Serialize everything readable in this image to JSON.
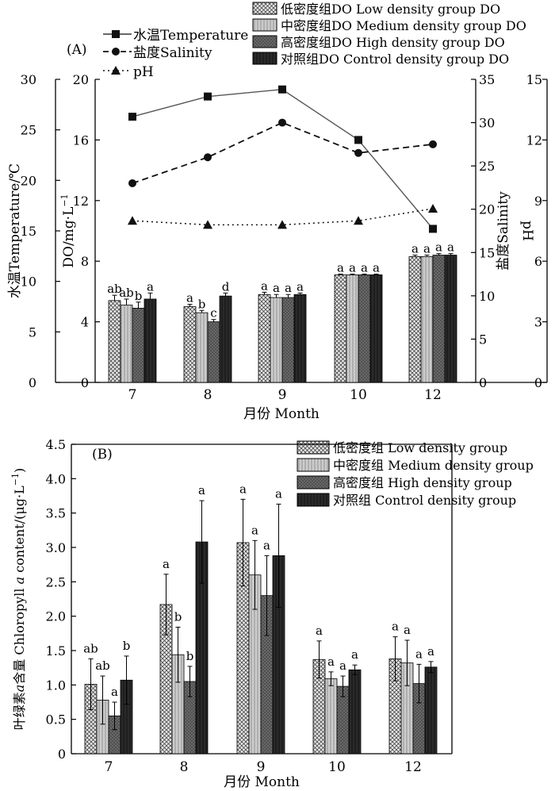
{
  "chart_data": [
    {
      "type": "bar+line",
      "panel_label": "(A)",
      "categories": [
        "7",
        "8",
        "9",
        "10",
        "12"
      ],
      "xlabel": "月份 Month",
      "left_axis_1": {
        "label": "水温Temperature/℃",
        "range": [
          0,
          30
        ],
        "ticks": [
          "0",
          "5",
          "10",
          "15",
          "20",
          "25",
          "30"
        ]
      },
      "left_axis_2": {
        "label_main": "DO/mg·L",
        "label_sup": "−1",
        "range": [
          0,
          20
        ],
        "ticks": [
          "0",
          "4",
          "8",
          "12",
          "16",
          "20"
        ]
      },
      "right_axis_1": {
        "label": "盐度Salinity",
        "range": [
          0,
          35
        ],
        "ticks": [
          "0",
          "5",
          "10",
          "15",
          "20",
          "25",
          "30",
          "35"
        ]
      },
      "right_axis_2": {
        "label": "pH",
        "range": [
          0,
          15
        ],
        "ticks": [
          "0",
          "3",
          "6",
          "9",
          "12",
          "15"
        ]
      },
      "bar_series": [
        {
          "name": "低密度组DO Low density group DO",
          "pattern": "crosshatch",
          "values": [
            5.4,
            5.0,
            5.8,
            7.1,
            8.3
          ],
          "errors": [
            0.35,
            0.15,
            0.15,
            0.05,
            0.1
          ],
          "letters": [
            "ab",
            "a",
            "a",
            "a",
            "a"
          ]
        },
        {
          "name": "中密度组DO Medium density group DO",
          "pattern": "vstripe",
          "values": [
            5.1,
            4.6,
            5.6,
            7.1,
            8.3
          ],
          "errors": [
            0.4,
            0.15,
            0.2,
            0.05,
            0.1
          ],
          "letters": [
            "ab",
            "b",
            "a",
            "a",
            "a"
          ]
        },
        {
          "name": "高密度组DO High density group DO",
          "pattern": "dark",
          "values": [
            4.9,
            4.0,
            5.6,
            7.1,
            8.4
          ],
          "errors": [
            0.4,
            0.15,
            0.2,
            0.05,
            0.1
          ],
          "letters": [
            "b",
            "c",
            "a",
            "a",
            "a"
          ]
        },
        {
          "name": "对照组DO Control density group DO",
          "pattern": "black",
          "values": [
            5.5,
            5.7,
            5.8,
            7.1,
            8.4
          ],
          "errors": [
            0.4,
            0.2,
            0.1,
            0.05,
            0.1
          ],
          "letters": [
            "a",
            "d",
            "a",
            "a",
            "a"
          ]
        }
      ],
      "line_series": [
        {
          "name": "水温Temperature",
          "axis": "temperature",
          "marker": "square",
          "values": [
            26.3,
            28.3,
            29.0,
            24.0,
            15.2
          ]
        },
        {
          "name": "盐度Salinity",
          "axis": "salinity",
          "marker": "circle",
          "values": [
            23.0,
            26.0,
            30.0,
            26.5,
            27.5
          ]
        },
        {
          "name": "pH",
          "axis": "ph",
          "marker": "triangle",
          "values": [
            8.0,
            7.8,
            7.8,
            8.0,
            8.6
          ]
        }
      ]
    },
    {
      "type": "bar",
      "panel_label": "(B)",
      "categories": [
        "7",
        "8",
        "9",
        "10",
        "12"
      ],
      "xlabel": "月份 Month",
      "ylabel_prefix": "叶绿素",
      "ylabel_italic": "a",
      "ylabel_rest": "含量 Chloropyll ",
      "ylabel_italic2": "a",
      "ylabel_suffix": " content/(μg·L",
      "ylabel_sup": "−1",
      "ylabel_close": ")",
      "ylim": [
        0,
        4.5
      ],
      "yticks": [
        "0",
        "0.5",
        "1.0",
        "1.5",
        "2.0",
        "2.5",
        "3.0",
        "3.5",
        "4.0",
        "4.5"
      ],
      "series": [
        {
          "name": "低密度组 Low density group",
          "pattern": "crosshatch",
          "values": [
            1.01,
            2.17,
            3.07,
            1.37,
            1.38
          ],
          "errors": [
            0.37,
            0.44,
            0.63,
            0.27,
            0.32
          ],
          "letters": [
            "ab",
            "a",
            "a",
            "a",
            "a"
          ]
        },
        {
          "name": "中密度组 Medium density group",
          "pattern": "vstripe",
          "values": [
            0.78,
            1.44,
            2.6,
            1.09,
            1.32
          ],
          "errors": [
            0.35,
            0.4,
            0.5,
            0.1,
            0.33
          ],
          "letters": [
            "ab",
            "b",
            "a",
            "a",
            "a"
          ]
        },
        {
          "name": "高密度组 High density group",
          "pattern": "dark",
          "values": [
            0.55,
            1.05,
            2.3,
            0.98,
            1.02
          ],
          "errors": [
            0.2,
            0.22,
            0.58,
            0.15,
            0.28
          ],
          "letters": [
            "a",
            "b",
            "a",
            "a",
            "a"
          ]
        },
        {
          "name": "对照组 Control density group",
          "pattern": "black",
          "values": [
            1.07,
            3.08,
            2.88,
            1.22,
            1.26
          ],
          "errors": [
            0.35,
            0.6,
            0.75,
            0.07,
            0.08
          ],
          "letters": [
            "b",
            "a",
            "a",
            "a",
            "a"
          ]
        }
      ]
    }
  ]
}
